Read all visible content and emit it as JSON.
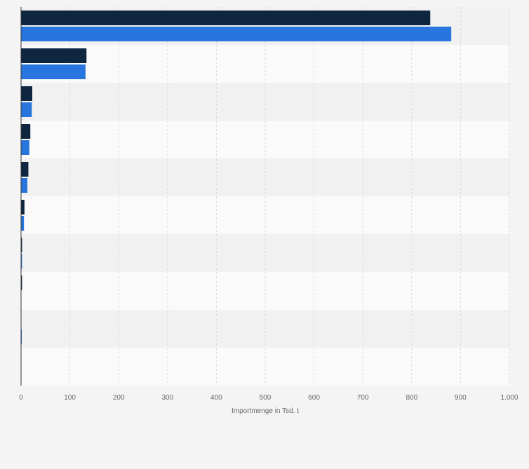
{
  "chart_data": {
    "type": "bar",
    "orientation": "horizontal",
    "categories": [
      "",
      "",
      "",
      "",
      "",
      "",
      "",
      "",
      "",
      ""
    ],
    "series": [
      {
        "values": [
          838,
          134,
          23,
          19,
          15,
          7,
          2,
          2,
          0,
          0
        ]
      },
      {
        "values": [
          881,
          132,
          22,
          17,
          13,
          6,
          2,
          0,
          1,
          0
        ]
      }
    ],
    "xlim": [
      0,
      1000
    ],
    "xticks": [
      0,
      100,
      200,
      300,
      400,
      500,
      600,
      700,
      800,
      900,
      1000
    ],
    "xtick_labels": [
      "0",
      "100",
      "200",
      "300",
      "400",
      "500",
      "600",
      "700",
      "800",
      "900",
      "1.000"
    ],
    "xlabel": "Importmenge in Tsd. t",
    "ylabel": "",
    "title": "",
    "grid": "vertical dashed",
    "legend": "none"
  },
  "colors": {
    "series": [
      "#0f2640",
      "#2876dd"
    ],
    "band_dark": "#f1f1f1",
    "band_light": "#fafafa",
    "grid": "#d4d4d4",
    "axis": "#333333",
    "text": "#666666"
  }
}
